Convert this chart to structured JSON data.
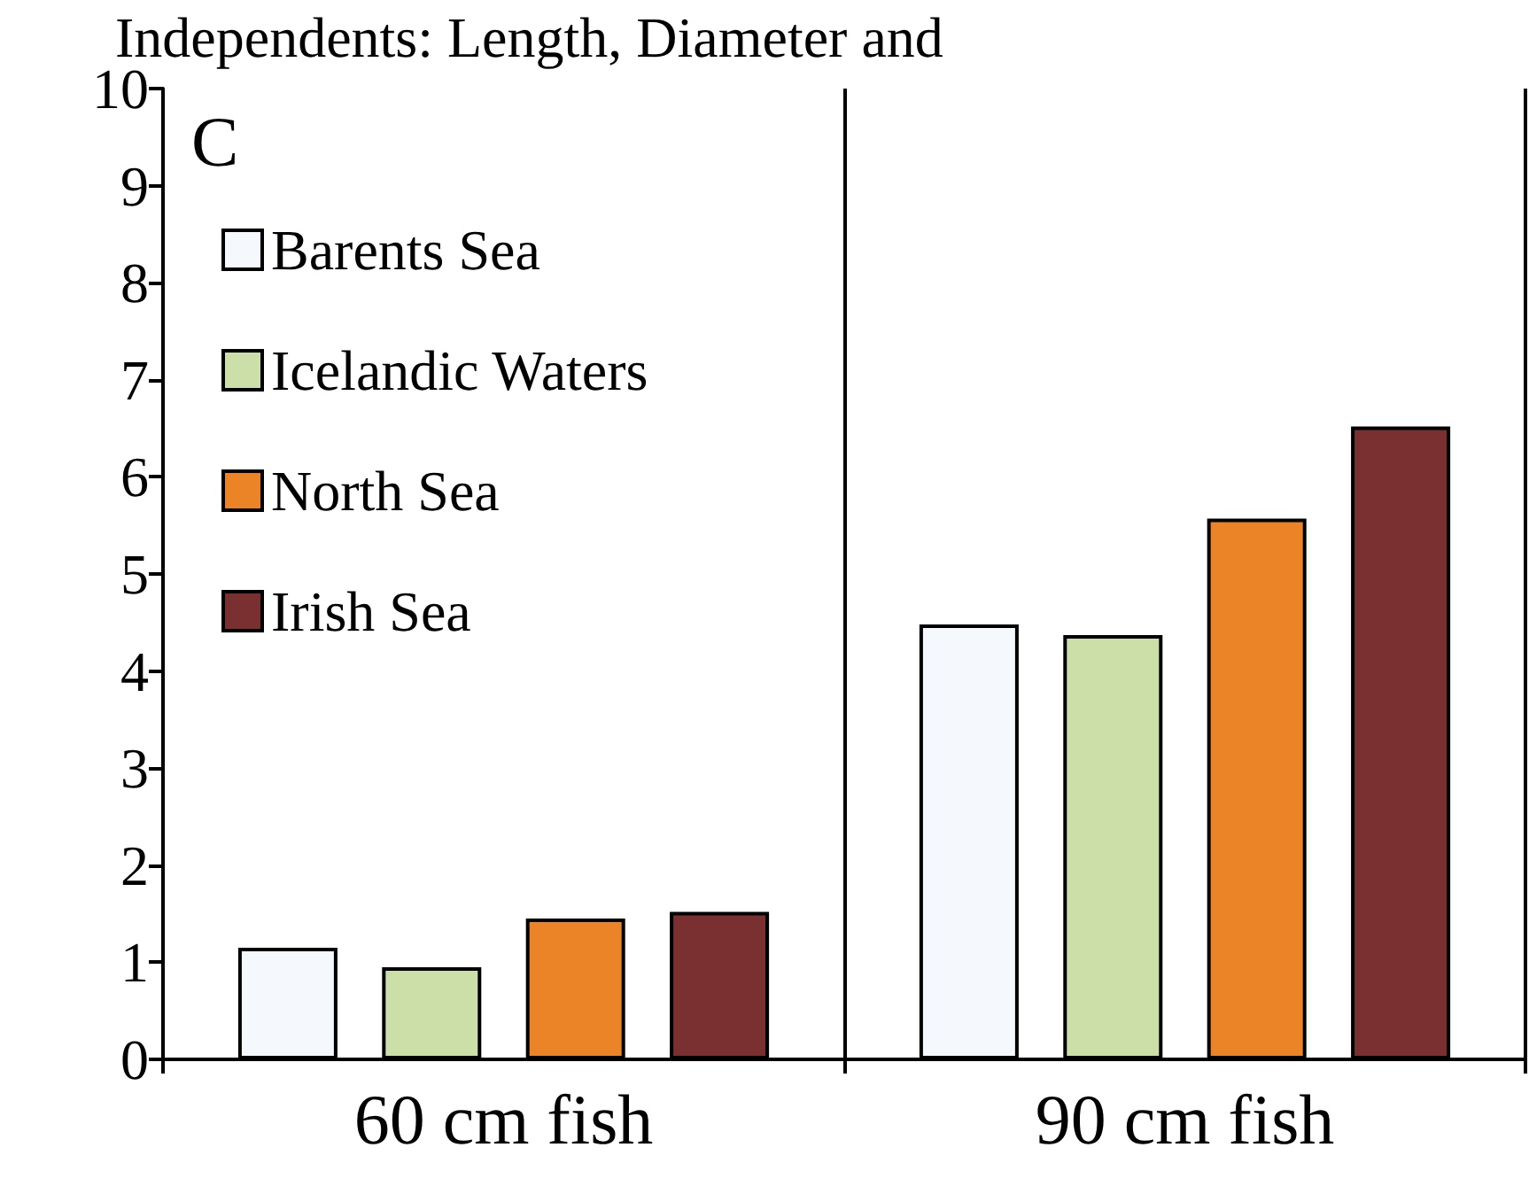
{
  "chart_data": {
    "type": "bar",
    "title": "Independents: Length, Diameter and",
    "annotations": [
      "C"
    ],
    "categories": [
      "60 cm fish",
      "90 cm fish"
    ],
    "series": [
      {
        "name": "Barents Sea",
        "color": "#f5f9fd",
        "values": [
          1.15,
          4.48
        ]
      },
      {
        "name": "Icelandic Waters",
        "color": "#cddfa8",
        "values": [
          0.95,
          4.37
        ]
      },
      {
        "name": "North Sea",
        "color": "#ea8426",
        "values": [
          1.45,
          5.57
        ]
      },
      {
        "name": "Irish Sea",
        "color": "#7a3030",
        "values": [
          1.52,
          6.52
        ]
      }
    ],
    "ylim": [
      0,
      10
    ],
    "yticks": [
      0,
      1,
      2,
      3,
      4,
      5,
      6,
      7,
      8,
      9,
      10
    ],
    "grid": "x",
    "legend": "top left"
  }
}
